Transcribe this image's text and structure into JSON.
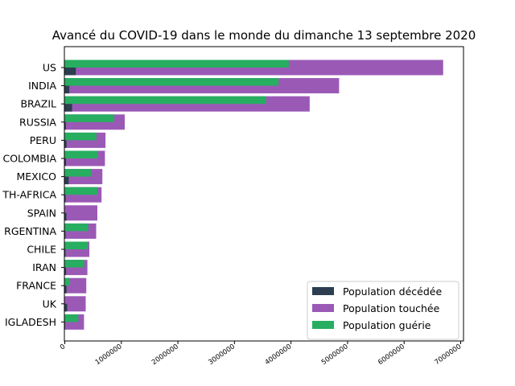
{
  "chart_data": {
    "type": "bar",
    "orientation": "horizontal",
    "title": "Avancé du COVID-19 dans le monde du dimanche 13 septembre 2020",
    "xlabel": "",
    "ylabel": "",
    "xlim": [
      0,
      7000000
    ],
    "x_ticks": [
      0,
      1000000,
      2000000,
      3000000,
      4000000,
      5000000,
      6000000,
      7000000
    ],
    "x_tick_labels": [
      "0",
      "1000000",
      "2000000",
      "3000000",
      "4000000",
      "5000000",
      "6000000",
      "7000000"
    ],
    "categories": [
      "US",
      "INDIA",
      "BRAZIL",
      "RUSSIA",
      "PERU",
      "COLOMBIA",
      "MEXICO",
      "SOUTH-AFRICA",
      "SPAIN",
      "ARGENTINA",
      "CHILE",
      "IRAN",
      "FRANCE",
      "UK",
      "BANGLADESH"
    ],
    "category_labels_visible": [
      "US",
      "INDIA",
      "BRAZIL",
      "RUSSIA",
      "PERU",
      "COLOMBIA",
      "MEXICO",
      "TH-AFRICA",
      "SPAIN",
      "RGENTINA",
      "CHILE",
      "IRAN",
      "FRANCE",
      "UK",
      "IGLADESH"
    ],
    "series": [
      {
        "name": "Population touchée",
        "color": "#9b59b6",
        "values": [
          6690000,
          4850000,
          4330000,
          1060000,
          720000,
          710000,
          665000,
          650000,
          576000,
          555000,
          435000,
          400000,
          380000,
          370000,
          340000
        ]
      },
      {
        "name": "Population guérie",
        "color": "#27ae60",
        "values": [
          3960000,
          3780000,
          3560000,
          875000,
          560000,
          585000,
          470000,
          578000,
          0,
          415000,
          410000,
          345000,
          90000,
          0,
          240000
        ]
      },
      {
        "name": "Population décédée",
        "color": "#2c3e50",
        "values": [
          195000,
          80000,
          130000,
          19000,
          31000,
          22000,
          70000,
          15000,
          30000,
          12000,
          12000,
          23000,
          31000,
          42000,
          5000
        ]
      }
    ],
    "legend": {
      "position": "lower-right",
      "entries": [
        "Population décédée",
        "Population touchée",
        "Population guérie"
      ],
      "colors": [
        "#2c3e50",
        "#9b59b6",
        "#27ae60"
      ]
    },
    "grid": false
  }
}
